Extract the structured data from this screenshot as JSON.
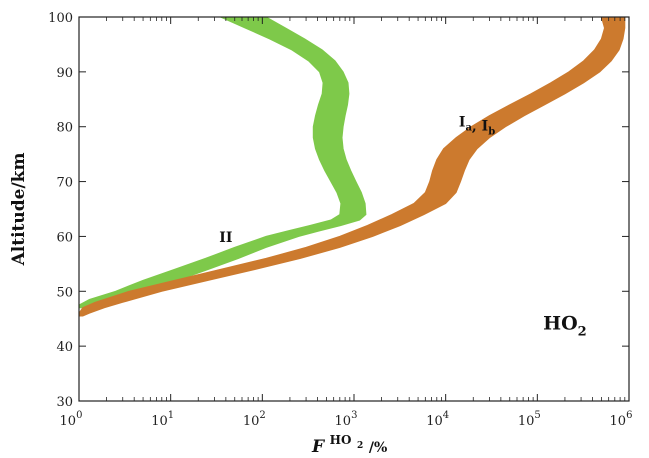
{
  "chart_data": {
    "type": "area",
    "title": "",
    "xlabel": {
      "main": "F",
      "sup": "HO",
      "sup_sub": "2",
      "suffix": "/%"
    },
    "ylabel": "Altitude/km",
    "x_scale": "log",
    "x_ticks": [
      {
        "base": "10",
        "exp": "0"
      },
      {
        "base": "10",
        "exp": "1"
      },
      {
        "base": "10",
        "exp": "2"
      },
      {
        "base": "10",
        "exp": "3"
      },
      {
        "base": "10",
        "exp": "4"
      },
      {
        "base": "10",
        "exp": "5"
      },
      {
        "base": "10",
        "exp": "6"
      }
    ],
    "xlim": [
      1,
      1000000
    ],
    "ylim": [
      30,
      100
    ],
    "y_ticks": [
      "30",
      "40",
      "50",
      "60",
      "70",
      "80",
      "90",
      "100"
    ],
    "grid": false,
    "annotations": [
      {
        "id": "species",
        "text": "HO",
        "sub": "2",
        "x": 200000,
        "y": 43
      },
      {
        "id": "label-II",
        "text": "II",
        "x": 40,
        "y": 59
      },
      {
        "id": "label-Ia-Ib",
        "parts": [
          {
            "t": "I"
          },
          {
            "s": "a"
          },
          {
            "t": ", I"
          },
          {
            "s": "b"
          }
        ],
        "x": 22000,
        "y": 80
      }
    ],
    "series": [
      {
        "name": "II",
        "color": "#7ec94a",
        "band": [
          {
            "y": 100,
            "low": 35,
            "high": 110
          },
          {
            "y": 98,
            "low": 65,
            "high": 180
          },
          {
            "y": 96,
            "low": 120,
            "high": 290
          },
          {
            "y": 94,
            "low": 210,
            "high": 450
          },
          {
            "y": 92,
            "low": 320,
            "high": 620
          },
          {
            "y": 90,
            "low": 420,
            "high": 760
          },
          {
            "y": 88,
            "low": 460,
            "high": 860
          },
          {
            "y": 86,
            "low": 450,
            "high": 880
          },
          {
            "y": 84,
            "low": 410,
            "high": 850
          },
          {
            "y": 82,
            "low": 380,
            "high": 800
          },
          {
            "y": 80,
            "low": 360,
            "high": 760
          },
          {
            "y": 78,
            "low": 360,
            "high": 740
          },
          {
            "y": 76,
            "low": 380,
            "high": 760
          },
          {
            "y": 74,
            "low": 420,
            "high": 820
          },
          {
            "y": 72,
            "low": 480,
            "high": 920
          },
          {
            "y": 70,
            "low": 560,
            "high": 1050
          },
          {
            "y": 68,
            "low": 650,
            "high": 1200
          },
          {
            "y": 66,
            "low": 720,
            "high": 1320
          },
          {
            "y": 64,
            "low": 700,
            "high": 1350
          },
          {
            "y": 63,
            "low": 560,
            "high": 1150
          },
          {
            "y": 62,
            "low": 330,
            "high": 720
          },
          {
            "y": 61,
            "low": 190,
            "high": 420
          },
          {
            "y": 60,
            "low": 110,
            "high": 250
          },
          {
            "y": 58,
            "low": 50,
            "high": 110
          },
          {
            "y": 56,
            "low": 24,
            "high": 55
          },
          {
            "y": 54,
            "low": 11,
            "high": 26
          },
          {
            "y": 52,
            "low": 5,
            "high": 12
          },
          {
            "y": 50,
            "low": 2.5,
            "high": 5.5
          },
          {
            "y": 48.5,
            "low": 1.3,
            "high": 2.8
          },
          {
            "y": 47.5,
            "low": 1.0,
            "high": 1.7
          },
          {
            "y": 47,
            "low": 1.0,
            "high": 1.3
          }
        ]
      },
      {
        "name": "Ia, Ib",
        "color": "#cc7a2e",
        "band": [
          {
            "y": 100,
            "low": 500000,
            "high": 900000
          },
          {
            "y": 98,
            "low": 540000,
            "high": 900000
          },
          {
            "y": 96,
            "low": 500000,
            "high": 860000
          },
          {
            "y": 94,
            "low": 420000,
            "high": 780000
          },
          {
            "y": 92,
            "low": 320000,
            "high": 640000
          },
          {
            "y": 90,
            "low": 220000,
            "high": 480000
          },
          {
            "y": 88,
            "low": 140000,
            "high": 320000
          },
          {
            "y": 86,
            "low": 85000,
            "high": 200000
          },
          {
            "y": 84,
            "low": 50000,
            "high": 120000
          },
          {
            "y": 82,
            "low": 30000,
            "high": 72000
          },
          {
            "y": 80,
            "low": 19000,
            "high": 45000
          },
          {
            "y": 78,
            "low": 13000,
            "high": 30000
          },
          {
            "y": 76,
            "low": 9500,
            "high": 22000
          },
          {
            "y": 74,
            "low": 8000,
            "high": 18000
          },
          {
            "y": 72,
            "low": 7200,
            "high": 16000
          },
          {
            "y": 70,
            "low": 6700,
            "high": 14500
          },
          {
            "y": 68,
            "low": 6000,
            "high": 13000
          },
          {
            "y": 66,
            "low": 4500,
            "high": 10000
          },
          {
            "y": 64,
            "low": 2600,
            "high": 5800
          },
          {
            "y": 62,
            "low": 1400,
            "high": 3200
          },
          {
            "y": 60,
            "low": 700,
            "high": 1600
          },
          {
            "y": 58,
            "low": 300,
            "high": 700
          },
          {
            "y": 56,
            "low": 110,
            "high": 260
          },
          {
            "y": 54,
            "low": 35,
            "high": 85
          },
          {
            "y": 52,
            "low": 11,
            "high": 26
          },
          {
            "y": 50,
            "low": 3.5,
            "high": 8
          },
          {
            "y": 48,
            "low": 1.5,
            "high": 3
          },
          {
            "y": 47,
            "low": 1.1,
            "high": 1.9
          },
          {
            "y": 46,
            "low": 1.0,
            "high": 1.3
          },
          {
            "y": 45.5,
            "low": 1.0,
            "high": 1.1
          }
        ]
      }
    ]
  }
}
